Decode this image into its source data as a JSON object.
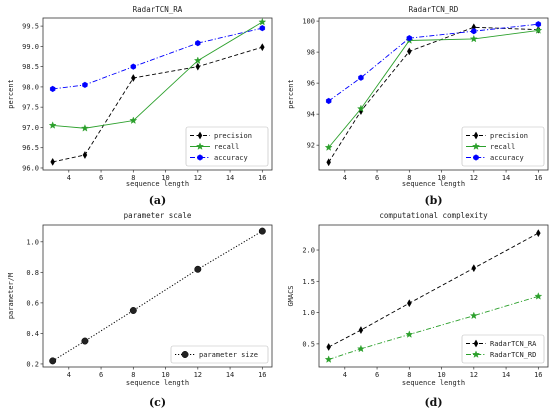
{
  "chart_data": [
    {
      "id": "a",
      "panel_label": "(a)",
      "type": "line",
      "title": "RadarTCN_RA",
      "xlabel": "sequence length",
      "ylabel": "percent",
      "x": [
        3,
        5,
        8,
        12,
        16
      ],
      "xlim": [
        2.4,
        16.6
      ],
      "ylim": [
        95.95,
        99.7
      ],
      "xticks": [
        4,
        6,
        8,
        10,
        12,
        14,
        16
      ],
      "yticks": [
        96.0,
        96.5,
        97.0,
        97.5,
        98.0,
        98.5,
        99.0,
        99.5
      ],
      "ytick_labels": [
        "96.0",
        "96.5",
        "97.0",
        "97.5",
        "98.0",
        "98.5",
        "99.0",
        "99.5"
      ],
      "legend_position": "lower-right",
      "series": [
        {
          "name": "precision",
          "values": [
            96.15,
            96.32,
            98.22,
            98.5,
            98.98
          ],
          "color": "#000000",
          "dash": "dashed",
          "marker": "diamond"
        },
        {
          "name": "recall",
          "values": [
            97.05,
            96.98,
            97.17,
            98.65,
            99.6
          ],
          "color": "#2ca02c",
          "dash": "solid",
          "marker": "star"
        },
        {
          "name": "accuracy",
          "values": [
            97.95,
            98.05,
            98.5,
            99.08,
            99.45
          ],
          "color": "#0000ff",
          "dash": "dashdot",
          "marker": "hexagon"
        }
      ]
    },
    {
      "id": "b",
      "panel_label": "(b)",
      "type": "line",
      "title": "RadarTCN_RD",
      "xlabel": "sequence length",
      "ylabel": "percent",
      "x": [
        3,
        5,
        8,
        12,
        16
      ],
      "xlim": [
        2.4,
        16.6
      ],
      "ylim": [
        90.4,
        100.2
      ],
      "xticks": [
        4,
        6,
        8,
        10,
        12,
        14,
        16
      ],
      "yticks": [
        92,
        94,
        96,
        98,
        100
      ],
      "ytick_labels": [
        "92",
        "94",
        "96",
        "98",
        "100"
      ],
      "legend_position": "lower-right",
      "series": [
        {
          "name": "precision",
          "values": [
            90.9,
            94.2,
            98.05,
            99.6,
            99.45
          ],
          "color": "#000000",
          "dash": "dashed",
          "marker": "diamond"
        },
        {
          "name": "recall",
          "values": [
            91.85,
            94.35,
            98.75,
            98.85,
            99.4
          ],
          "color": "#2ca02c",
          "dash": "solid",
          "marker": "star"
        },
        {
          "name": "accuracy",
          "values": [
            94.85,
            96.35,
            98.9,
            99.35,
            99.8
          ],
          "color": "#0000ff",
          "dash": "dashdot",
          "marker": "hexagon"
        }
      ]
    },
    {
      "id": "c",
      "panel_label": "(c)",
      "type": "line",
      "title": "parameter scale",
      "xlabel": "sequence length",
      "ylabel": "parameter/M",
      "x": [
        3,
        5,
        8,
        12,
        16
      ],
      "xlim": [
        2.4,
        16.6
      ],
      "ylim": [
        0.18,
        1.11
      ],
      "xticks": [
        4,
        6,
        8,
        10,
        12,
        14,
        16
      ],
      "yticks": [
        0.2,
        0.4,
        0.6,
        0.8,
        1.0
      ],
      "ytick_labels": [
        "0.2",
        "0.4",
        "0.6",
        "0.8",
        "1.0"
      ],
      "legend_position": "lower-right",
      "series": [
        {
          "name": "parameter size",
          "values": [
            0.22,
            0.35,
            0.55,
            0.82,
            1.07
          ],
          "color": "#000000",
          "dash": "dotted",
          "marker": "circle"
        }
      ]
    },
    {
      "id": "d",
      "panel_label": "(d)",
      "type": "line",
      "title": "computational complexity",
      "xlabel": "sequence length",
      "ylabel": "GMACS",
      "x": [
        3,
        5,
        8,
        12,
        16
      ],
      "xlim": [
        2.4,
        16.6
      ],
      "ylim": [
        0.13,
        2.4
      ],
      "xticks": [
        4,
        6,
        8,
        10,
        12,
        14,
        16
      ],
      "yticks": [
        0.5,
        1.0,
        1.5,
        2.0
      ],
      "ytick_labels": [
        "0.5",
        "1.0",
        "1.5",
        "2.0"
      ],
      "legend_position": "lower-right",
      "series": [
        {
          "name": "RadarTCN_RA",
          "values": [
            0.45,
            0.72,
            1.15,
            1.71,
            2.27
          ],
          "color": "#000000",
          "dash": "dashed",
          "marker": "diamond"
        },
        {
          "name": "RadarTCN_RD",
          "values": [
            0.25,
            0.42,
            0.65,
            0.95,
            1.26
          ],
          "color": "#2ca02c",
          "dash": "dashdot",
          "marker": "star"
        }
      ]
    }
  ]
}
